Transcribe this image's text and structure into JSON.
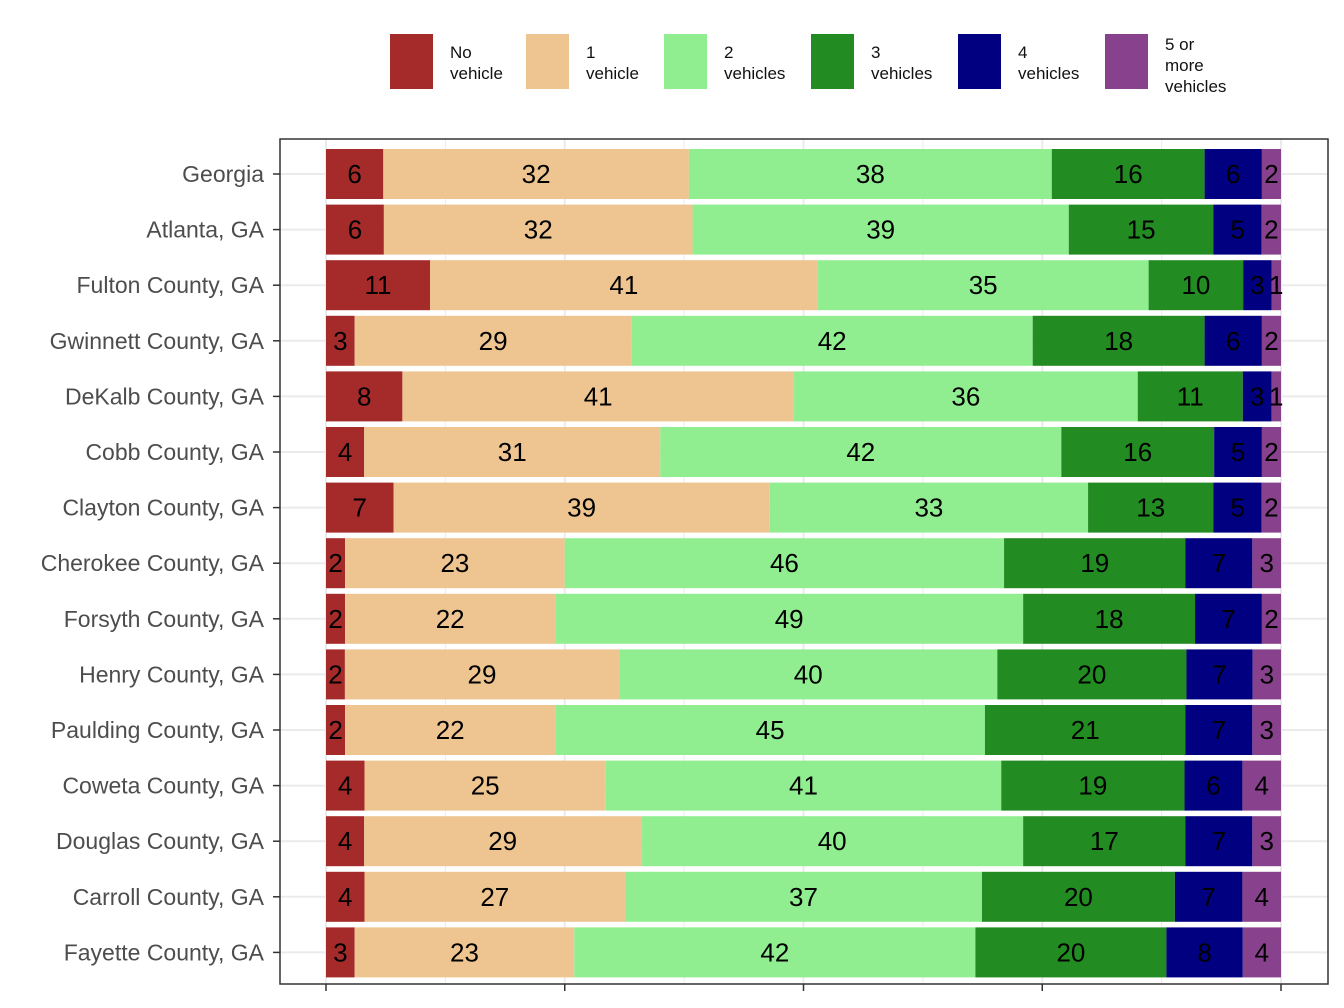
{
  "chart_data": {
    "type": "bar",
    "orientation": "horizontal",
    "stacked": true,
    "title": "",
    "xlabel": "",
    "ylabel": "",
    "xlim": [
      0,
      100
    ],
    "grid": true,
    "legend_position": "top",
    "categories": [
      "Georgia",
      "Atlanta, GA",
      "Fulton County, GA",
      "Gwinnett County, GA",
      "DeKalb County, GA",
      "Cobb County, GA",
      "Clayton County, GA",
      "Cherokee County, GA",
      "Forsyth County, GA",
      "Henry County, GA",
      "Paulding County, GA",
      "Coweta County, GA",
      "Douglas County, GA",
      "Carroll County, GA",
      "Fayette County, GA"
    ],
    "series": [
      {
        "name": "No\nvehicle",
        "color": "#a52a2a",
        "values": [
          6,
          6,
          11,
          3,
          8,
          4,
          7,
          2,
          2,
          2,
          2,
          4,
          4,
          4,
          3
        ]
      },
      {
        "name": "1\nvehicle",
        "color": "#eec591",
        "values": [
          32,
          32,
          41,
          29,
          41,
          31,
          39,
          23,
          22,
          29,
          22,
          25,
          29,
          27,
          23
        ]
      },
      {
        "name": "2\nvehicles",
        "color": "#90ee90",
        "values": [
          38,
          39,
          35,
          42,
          36,
          42,
          33,
          46,
          49,
          40,
          45,
          41,
          40,
          37,
          42
        ]
      },
      {
        "name": "3\nvehicles",
        "color": "#228b22",
        "values": [
          16,
          15,
          10,
          18,
          11,
          16,
          13,
          19,
          18,
          20,
          21,
          19,
          17,
          20,
          20
        ]
      },
      {
        "name": "4\nvehicles",
        "color": "#000080",
        "values": [
          6,
          5,
          3,
          6,
          3,
          5,
          5,
          7,
          7,
          7,
          7,
          6,
          7,
          7,
          8
        ]
      },
      {
        "name": "5 or\nmore\nvehicles",
        "color": "#88418c",
        "values": [
          2,
          2,
          1,
          2,
          1,
          2,
          2,
          3,
          2,
          3,
          3,
          4,
          3,
          4,
          4
        ]
      }
    ]
  }
}
